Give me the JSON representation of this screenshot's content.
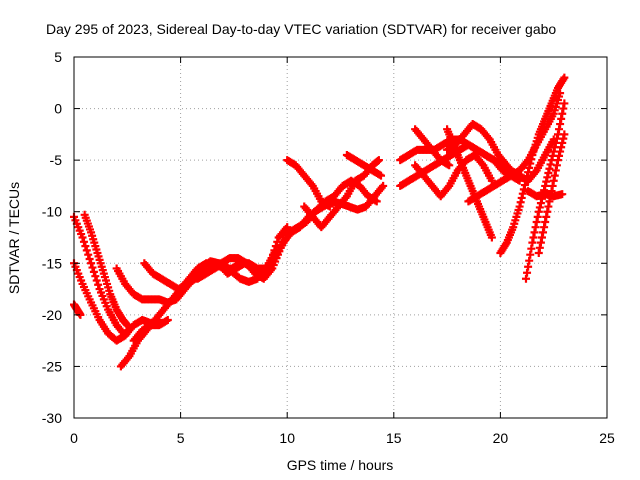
{
  "chart_data": {
    "type": "scatter",
    "title": "Day 295 of 2023, Sidereal Day-to-day VTEC variation (SDTVAR) for receiver gabo",
    "xlabel": "GPS time / hours",
    "ylabel": "SDTVAR / TECUs",
    "xlim": [
      0,
      25
    ],
    "ylim": [
      -30,
      5
    ],
    "xticks": [
      0,
      5,
      10,
      15,
      20,
      25
    ],
    "yticks": [
      -30,
      -25,
      -20,
      -15,
      -10,
      -5,
      0,
      5
    ],
    "grid": true,
    "legend": "none",
    "marker": "plus",
    "color": "#ff0000",
    "series": [
      {
        "points": [
          [
            0.0,
            -10.5
          ],
          [
            0.4,
            -12.5
          ],
          [
            0.8,
            -15.0
          ],
          [
            1.2,
            -17.5
          ],
          [
            1.6,
            -19.5
          ],
          [
            2.0,
            -21.0
          ],
          [
            2.4,
            -22.0
          ],
          [
            2.5,
            -21.5
          ]
        ]
      },
      {
        "points": [
          [
            0.5,
            -10.3
          ],
          [
            0.8,
            -12.0
          ],
          [
            1.1,
            -14.0
          ],
          [
            1.4,
            -16.0
          ],
          [
            1.7,
            -18.0
          ],
          [
            2.0,
            -19.5
          ],
          [
            2.3,
            -20.5
          ],
          [
            2.5,
            -21.0
          ]
        ]
      },
      {
        "points": [
          [
            0.0,
            -15.0
          ],
          [
            0.4,
            -17.0
          ],
          [
            0.8,
            -18.8
          ],
          [
            1.2,
            -20.5
          ],
          [
            1.6,
            -21.8
          ],
          [
            2.0,
            -22.5
          ],
          [
            2.4,
            -22.0
          ],
          [
            2.8,
            -21.0
          ],
          [
            3.2,
            -20.5
          ],
          [
            3.6,
            -20.8
          ],
          [
            4.0,
            -20.5
          ]
        ]
      },
      {
        "points": [
          [
            0.0,
            -19.0
          ],
          [
            0.15,
            -19.5
          ],
          [
            0.3,
            -20.0
          ]
        ]
      },
      {
        "points": [
          [
            2.2,
            -25.0
          ],
          [
            2.6,
            -24.0
          ],
          [
            3.0,
            -22.5
          ],
          [
            3.4,
            -21.5
          ],
          [
            3.8,
            -20.5
          ],
          [
            4.2,
            -19.5
          ],
          [
            4.6,
            -18.5
          ],
          [
            5.0,
            -17.5
          ],
          [
            5.4,
            -16.5
          ],
          [
            5.8,
            -15.5
          ],
          [
            6.2,
            -15.0
          ],
          [
            6.6,
            -15.0
          ],
          [
            7.0,
            -15.5
          ],
          [
            7.4,
            -15.5
          ],
          [
            7.8,
            -15.0
          ],
          [
            8.2,
            -15.0
          ],
          [
            8.6,
            -15.5
          ],
          [
            9.0,
            -15.5
          ],
          [
            9.4,
            -14.5
          ],
          [
            9.8,
            -13.0
          ],
          [
            10.2,
            -12.0
          ],
          [
            10.6,
            -11.5
          ],
          [
            11.0,
            -10.5
          ],
          [
            11.4,
            -9.8
          ],
          [
            11.8,
            -9.0
          ],
          [
            12.2,
            -8.5
          ],
          [
            12.6,
            -7.5
          ],
          [
            13.0,
            -7.0
          ],
          [
            13.4,
            -7.5
          ],
          [
            13.8,
            -8.5
          ],
          [
            14.2,
            -9.0
          ]
        ]
      },
      {
        "points": [
          [
            2.0,
            -15.5
          ],
          [
            2.4,
            -17.0
          ],
          [
            2.8,
            -18.0
          ],
          [
            3.2,
            -18.5
          ],
          [
            3.6,
            -18.5
          ],
          [
            4.0,
            -18.5
          ],
          [
            4.4,
            -18.8
          ],
          [
            4.8,
            -18.5
          ],
          [
            5.2,
            -17.5
          ],
          [
            5.6,
            -16.5
          ],
          [
            6.0,
            -15.5
          ],
          [
            6.4,
            -14.8
          ],
          [
            6.8,
            -15.0
          ],
          [
            7.2,
            -16.0
          ],
          [
            7.6,
            -15.5
          ],
          [
            8.0,
            -15.0
          ],
          [
            8.4,
            -15.5
          ],
          [
            8.8,
            -16.0
          ],
          [
            9.2,
            -15.0
          ],
          [
            9.6,
            -12.5
          ],
          [
            10.0,
            -11.5
          ]
        ]
      },
      {
        "points": [
          [
            3.3,
            -15.0
          ],
          [
            3.7,
            -16.0
          ],
          [
            4.1,
            -16.5
          ],
          [
            4.5,
            -17.0
          ],
          [
            4.9,
            -17.5
          ],
          [
            5.3,
            -17.0
          ],
          [
            5.7,
            -16.5
          ],
          [
            6.1,
            -16.0
          ],
          [
            6.5,
            -15.5
          ],
          [
            6.9,
            -15.0
          ],
          [
            7.3,
            -14.5
          ],
          [
            7.7,
            -14.5
          ],
          [
            8.1,
            -15.0
          ],
          [
            8.5,
            -16.0
          ],
          [
            8.9,
            -16.5
          ],
          [
            9.3,
            -15.5
          ],
          [
            9.7,
            -13.5
          ],
          [
            10.1,
            -12.0
          ],
          [
            10.5,
            -11.5
          ],
          [
            10.9,
            -11.0
          ],
          [
            11.3,
            -10.0
          ],
          [
            11.7,
            -9.5
          ],
          [
            12.1,
            -9.0
          ],
          [
            12.5,
            -9.2
          ],
          [
            12.9,
            -9.5
          ],
          [
            13.3,
            -9.8
          ],
          [
            13.7,
            -9.5
          ],
          [
            14.1,
            -8.5
          ],
          [
            14.5,
            -7.5
          ]
        ]
      },
      {
        "points": [
          [
            5.8,
            -16.5
          ],
          [
            6.2,
            -16.0
          ],
          [
            6.6,
            -15.5
          ],
          [
            7.0,
            -15.0
          ],
          [
            7.4,
            -15.8
          ],
          [
            7.8,
            -16.5
          ],
          [
            8.2,
            -16.8
          ],
          [
            8.6,
            -16.5
          ],
          [
            9.0,
            -15.5
          ],
          [
            9.4,
            -14.0
          ]
        ]
      },
      {
        "points": [
          [
            2.8,
            -22.5
          ],
          [
            3.2,
            -21.5
          ],
          [
            3.6,
            -21.0
          ],
          [
            4.0,
            -21.0
          ],
          [
            4.4,
            -20.5
          ]
        ]
      },
      {
        "points": [
          [
            10.8,
            -9.5
          ],
          [
            11.2,
            -10.5
          ],
          [
            11.6,
            -11.5
          ],
          [
            12.0,
            -10.5
          ],
          [
            12.4,
            -9.5
          ],
          [
            12.8,
            -8.5
          ],
          [
            13.2,
            -7.0
          ],
          [
            13.6,
            -6.5
          ],
          [
            14.0,
            -5.5
          ],
          [
            14.3,
            -5.0
          ]
        ]
      },
      {
        "points": [
          [
            10.0,
            -5.0
          ],
          [
            10.4,
            -5.5
          ],
          [
            10.8,
            -6.5
          ],
          [
            11.2,
            -7.5
          ],
          [
            11.6,
            -9.0
          ],
          [
            12.0,
            -9.5
          ]
        ]
      },
      {
        "points": [
          [
            12.8,
            -4.5
          ],
          [
            13.2,
            -5.0
          ],
          [
            13.6,
            -5.5
          ],
          [
            14.0,
            -6.0
          ],
          [
            14.4,
            -6.5
          ]
        ]
      },
      {
        "points": [
          [
            15.3,
            -5.0
          ],
          [
            15.7,
            -4.5
          ],
          [
            16.1,
            -4.0
          ],
          [
            16.5,
            -4.0
          ],
          [
            16.9,
            -4.0
          ],
          [
            17.3,
            -3.5
          ],
          [
            17.7,
            -3.0
          ],
          [
            18.1,
            -3.0
          ],
          [
            18.5,
            -3.5
          ],
          [
            18.9,
            -4.0
          ],
          [
            19.3,
            -4.5
          ],
          [
            19.7,
            -5.0
          ],
          [
            20.1,
            -5.5
          ],
          [
            20.5,
            -6.0
          ],
          [
            20.9,
            -6.5
          ],
          [
            21.3,
            -7.0
          ],
          [
            21.7,
            -6.0
          ],
          [
            22.1,
            -4.5
          ],
          [
            22.5,
            -3.0
          ]
        ]
      },
      {
        "points": [
          [
            15.3,
            -7.5
          ],
          [
            15.7,
            -7.0
          ],
          [
            16.1,
            -6.5
          ],
          [
            16.5,
            -6.0
          ],
          [
            16.9,
            -5.5
          ],
          [
            17.3,
            -5.0
          ],
          [
            17.7,
            -4.5
          ],
          [
            18.1,
            -4.0
          ],
          [
            18.5,
            -3.5
          ],
          [
            18.9,
            -4.0
          ],
          [
            19.3,
            -4.5
          ],
          [
            19.7,
            -5.0
          ],
          [
            20.1,
            -6.0
          ],
          [
            20.5,
            -6.5
          ],
          [
            20.9,
            -7.0
          ]
        ]
      },
      {
        "points": [
          [
            16.0,
            -5.5
          ],
          [
            16.4,
            -6.5
          ],
          [
            16.8,
            -7.5
          ],
          [
            17.2,
            -8.5
          ],
          [
            17.6,
            -7.5
          ],
          [
            18.0,
            -6.0
          ],
          [
            18.4,
            -5.0
          ],
          [
            18.8,
            -4.5
          ],
          [
            19.2,
            -5.5
          ],
          [
            19.6,
            -7.0
          ]
        ]
      },
      {
        "points": [
          [
            16.0,
            -2.0
          ],
          [
            16.4,
            -3.0
          ],
          [
            16.8,
            -4.0
          ],
          [
            17.2,
            -5.0
          ],
          [
            17.6,
            -5.5
          ]
        ]
      },
      {
        "points": [
          [
            17.5,
            -4.0
          ],
          [
            17.9,
            -3.5
          ],
          [
            18.3,
            -2.5
          ],
          [
            18.7,
            -1.5
          ],
          [
            19.1,
            -2.0
          ],
          [
            19.5,
            -3.0
          ],
          [
            19.9,
            -4.5
          ],
          [
            20.3,
            -5.5
          ],
          [
            20.7,
            -6.5
          ]
        ]
      },
      {
        "points": [
          [
            17.5,
            -2.0
          ],
          [
            17.8,
            -3.5
          ],
          [
            18.1,
            -5.0
          ],
          [
            18.4,
            -6.5
          ],
          [
            18.7,
            -8.0
          ],
          [
            19.0,
            -9.5
          ],
          [
            19.3,
            -11.0
          ],
          [
            19.6,
            -12.5
          ]
        ]
      },
      {
        "points": [
          [
            18.5,
            -9.0
          ],
          [
            18.9,
            -8.5
          ],
          [
            19.3,
            -8.0
          ],
          [
            19.7,
            -7.5
          ],
          [
            20.1,
            -7.0
          ],
          [
            20.5,
            -6.5
          ],
          [
            20.9,
            -6.0
          ],
          [
            21.3,
            -5.0
          ],
          [
            21.7,
            -3.5
          ],
          [
            22.1,
            -2.0
          ],
          [
            22.5,
            -0.5
          ],
          [
            22.8,
            1.5
          ]
        ]
      },
      {
        "points": [
          [
            20.0,
            -14.0
          ],
          [
            20.3,
            -13.0
          ],
          [
            20.6,
            -11.5
          ],
          [
            20.9,
            -9.5
          ],
          [
            21.2,
            -7.0
          ],
          [
            21.5,
            -4.5
          ],
          [
            21.8,
            -2.5
          ],
          [
            22.1,
            -1.0
          ],
          [
            22.4,
            0.5
          ],
          [
            22.7,
            2.0
          ],
          [
            23.0,
            3.0
          ]
        ]
      },
      {
        "points": [
          [
            21.2,
            -16.5
          ],
          [
            21.5,
            -13.0
          ],
          [
            21.8,
            -10.0
          ],
          [
            22.1,
            -7.5
          ],
          [
            22.4,
            -5.0
          ],
          [
            22.7,
            -2.5
          ],
          [
            23.0,
            0.5
          ]
        ]
      },
      {
        "points": [
          [
            21.8,
            -14.0
          ],
          [
            22.1,
            -11.0
          ],
          [
            22.4,
            -8.0
          ],
          [
            22.7,
            -5.0
          ],
          [
            23.0,
            -2.5
          ]
        ]
      },
      {
        "points": [
          [
            21.3,
            -8.0
          ],
          [
            21.7,
            -8.5
          ],
          [
            22.1,
            -8.3
          ],
          [
            22.5,
            -8.5
          ],
          [
            22.9,
            -8.3
          ]
        ]
      }
    ]
  }
}
